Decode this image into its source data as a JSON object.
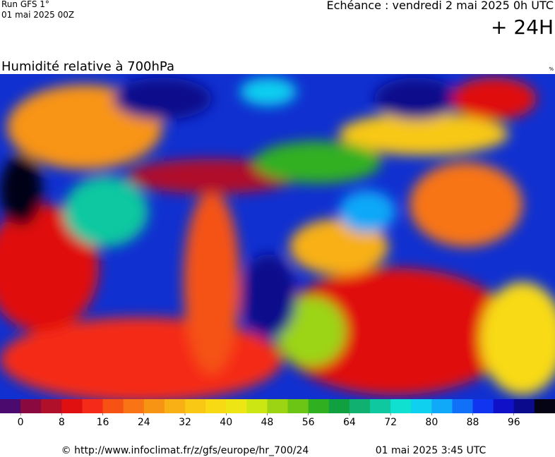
{
  "header": {
    "run": "Run GFS 1°",
    "run_date": "01 mai 2025 00Z",
    "valid": "Echéance : vendredi 2 mai 2025 0h UTC",
    "lead": "+ 24H"
  },
  "title": "Humidité relative à 700hPa",
  "unit": "%",
  "legend": {
    "colors": [
      "#4b0a6e",
      "#8a0a40",
      "#b0102a",
      "#e01010",
      "#f52a18",
      "#f55214",
      "#f87414",
      "#f89414",
      "#f8b014",
      "#f8c814",
      "#f8da14",
      "#eee614",
      "#cce614",
      "#9cd414",
      "#6cc414",
      "#30b020",
      "#10a040",
      "#10b070",
      "#10c8a0",
      "#10e0d0",
      "#10d0f0",
      "#10a8f8",
      "#1070f8",
      "#1034f0",
      "#1010c8",
      "#0a0a8c",
      "#040414"
    ],
    "ticks": [
      0,
      8,
      16,
      24,
      32,
      40,
      48,
      56,
      64,
      72,
      80,
      88,
      96
    ]
  },
  "footer": {
    "source": "© http://www.infoclimat.fr/z/gfs/europe/hr_700/24",
    "issued": "01 mai 2025  3:45 UTC"
  }
}
